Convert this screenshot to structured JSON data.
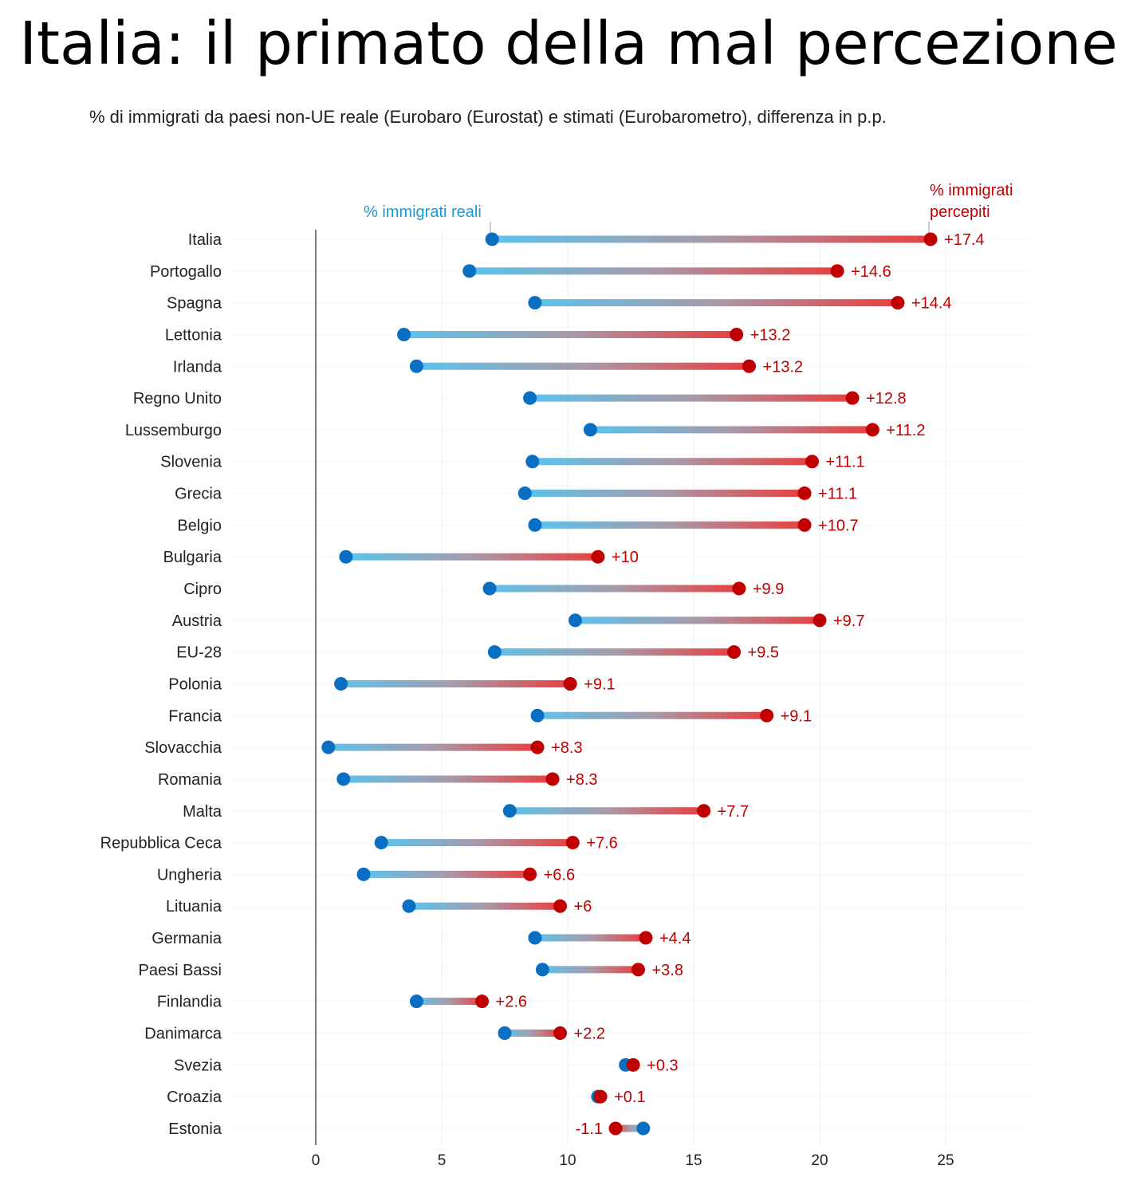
{
  "title": "Italia: il primato della mal percezione",
  "subtitle": "% di immigrati da paesi non-UE reale (Eurobaro (Eurostat) e stimati (Eurobarometro), differenza in p.p.",
  "chart_data": {
    "type": "dumbbell",
    "title": "Italia: il primato della mal percezione",
    "subtitle": "% di immigrati da paesi non-UE reale (Eurobaro (Eurostat) e stimati (Eurobarometro), differenza in p.p.",
    "xlim": [
      0,
      28
    ],
    "xticks": [
      "0",
      "5",
      "10",
      "15",
      "20",
      "25"
    ],
    "grid": true,
    "annotations": {
      "real": "% immigrati reali",
      "perceived_line1": "% immigrati",
      "perceived_line2": "percepiti"
    },
    "colors": {
      "real": "#0a6fc2",
      "perceived": "#c00000",
      "line_real": "#5cc3ec",
      "line_perceived": "#e8403f"
    },
    "categories": [
      "Italia",
      "Portogallo",
      "Spagna",
      "Lettonia",
      "Irlanda",
      "Regno Unito",
      "Lussemburgo",
      "Slovenia",
      "Grecia",
      "Belgio",
      "Bulgaria",
      "Cipro",
      "Austria",
      "EU-28",
      "Polonia",
      "Francia",
      "Slovacchia",
      "Romania",
      "Malta",
      "Repubblica Ceca",
      "Ungheria",
      "Lituania",
      "Germania",
      "Paesi Bassi",
      "Finlandia",
      "Danimarca",
      "Svezia",
      "Croazia",
      "Estonia"
    ],
    "series": [
      {
        "name": "% immigrati reali",
        "values": [
          7.0,
          6.1,
          8.7,
          3.5,
          4.0,
          8.5,
          10.9,
          8.6,
          8.3,
          8.7,
          1.2,
          6.9,
          10.3,
          7.1,
          1.0,
          8.8,
          0.5,
          1.1,
          7.7,
          2.6,
          1.9,
          3.7,
          8.7,
          9.0,
          4.0,
          7.5,
          12.3,
          11.2,
          13.0
        ]
      },
      {
        "name": "% immigrati percepiti",
        "values": [
          24.4,
          20.7,
          23.1,
          16.7,
          17.2,
          21.3,
          22.1,
          19.7,
          19.4,
          19.4,
          11.2,
          16.8,
          20.0,
          16.6,
          10.1,
          17.9,
          8.8,
          9.4,
          15.4,
          10.2,
          8.5,
          9.7,
          13.1,
          12.8,
          6.6,
          9.7,
          12.6,
          11.3,
          11.9
        ]
      }
    ],
    "diff_labels": [
      "+17.4",
      "+14.6",
      "+14.4",
      "+13.2",
      "+13.2",
      "+12.8",
      "+11.2",
      "+11.1",
      "+11.1",
      "+10.7",
      "+10",
      "+9.9",
      "+9.7",
      "+9.5",
      "+9.1",
      "+9.1",
      "+8.3",
      "+8.3",
      "+7.7",
      "+7.6",
      "+6.6",
      "+6",
      "+4.4",
      "+3.8",
      "+2.6",
      "+2.2",
      "+0.3",
      "+0.1",
      "-1.1"
    ]
  }
}
